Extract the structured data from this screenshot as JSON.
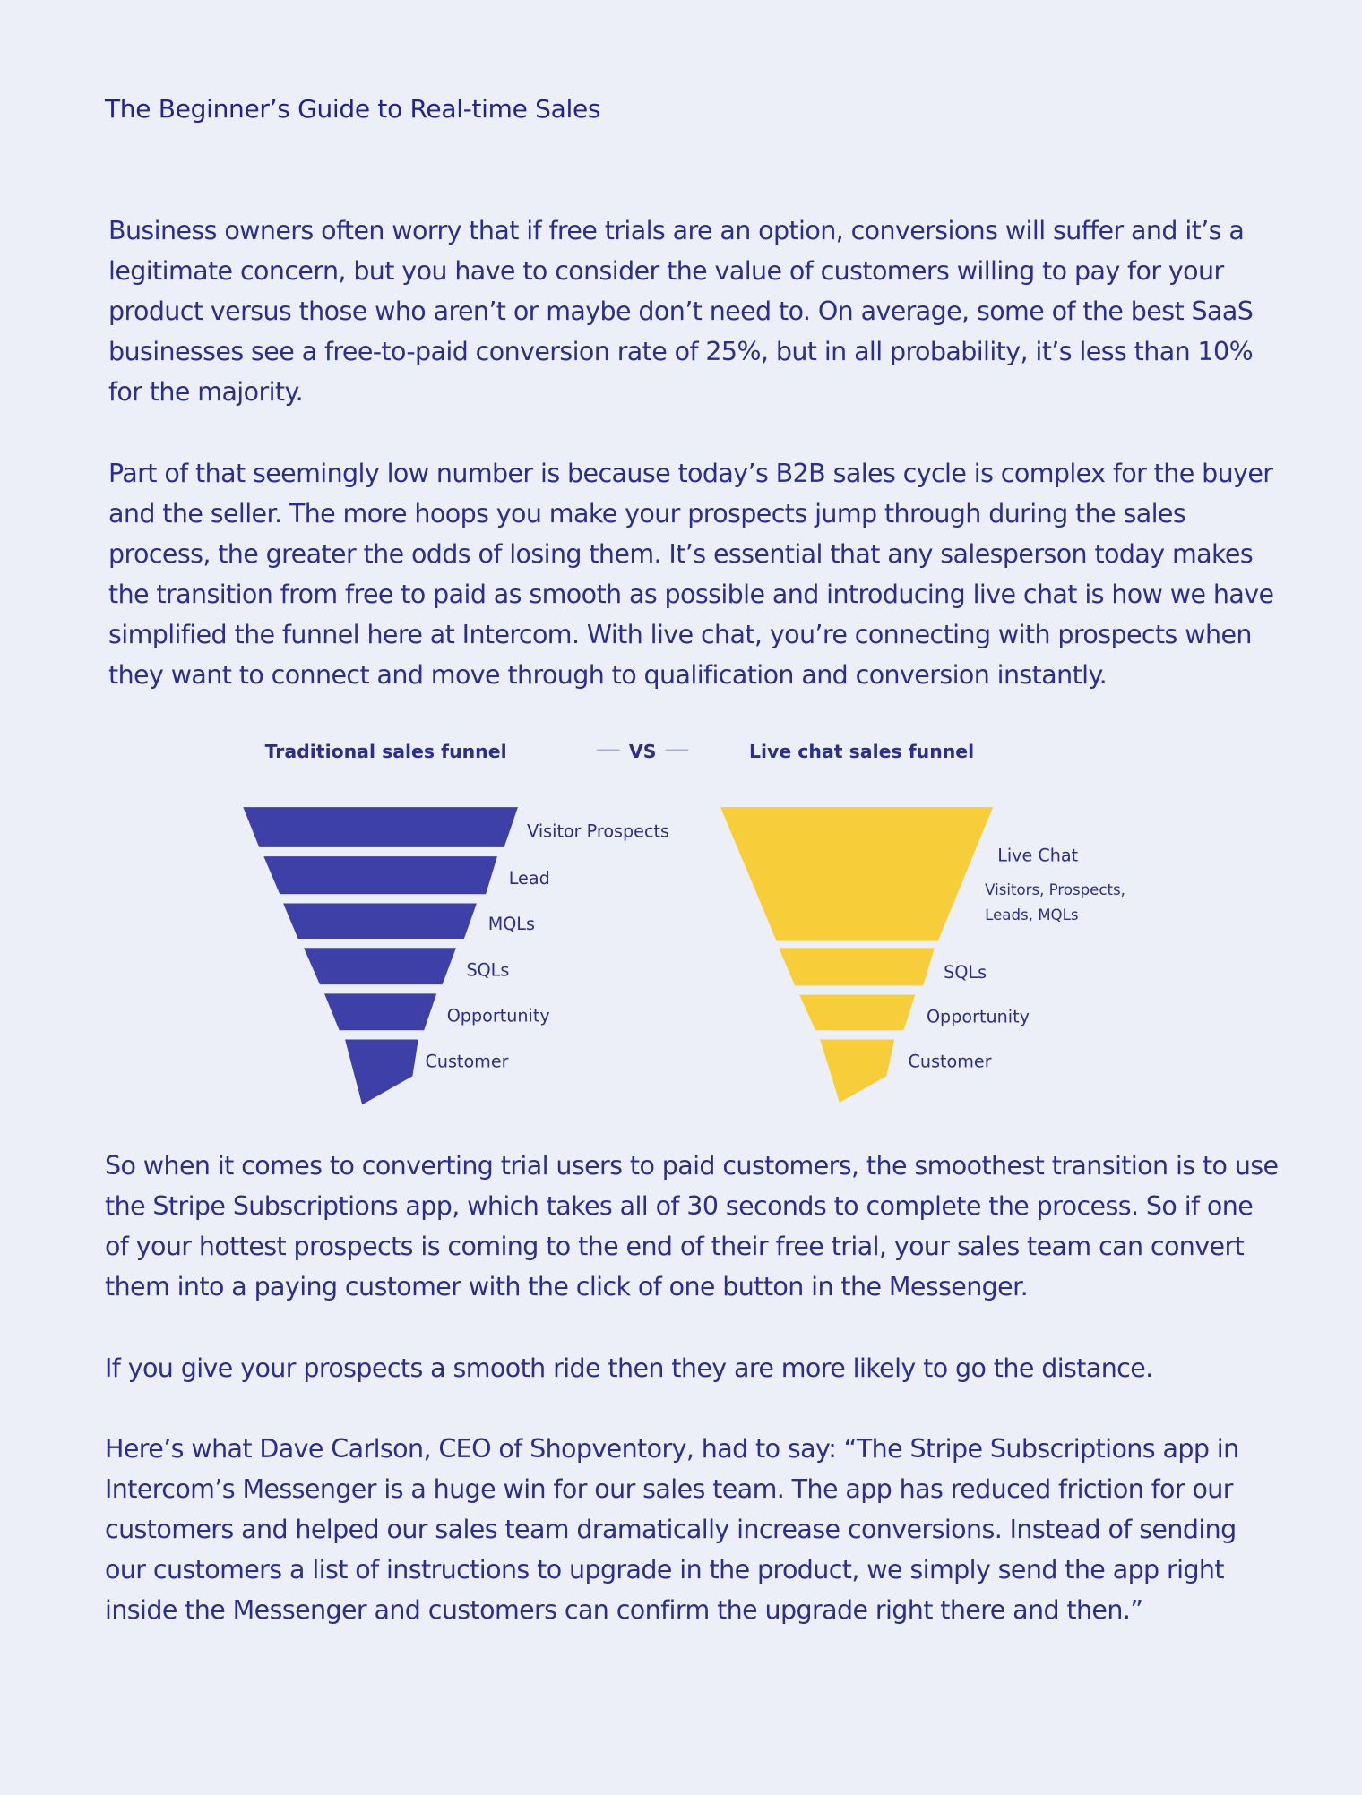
{
  "header": {
    "title": "The Beginner’s Guide to Real-time Sales"
  },
  "paragraphs": [
    "Business owners often worry that if free trials are an option, conversions will suffer and it’s a legitimate concern, but you have to consider the value of customers willing to pay for your product versus those who aren’t or maybe don’t need to. On average, some of the best SaaS businesses see a free-to-paid conversion rate of 25%, but in all probability, it’s less than 10% for the majority.",
    "Part of that seemingly low number is because today’s B2B sales cycle is complex for the buyer and the seller. The more hoops you make your prospects jump through during the sales process, the greater the odds of losing them. It’s essential that any salesperson today makes the transition from free to paid as smooth as possible and introducing live chat is how we have simplified the funnel here at Intercom. With live chat, you’re connecting with prospects when they want to connect and move through to qualification and conversion instantly.",
    "So when it comes to converting trial users to paid customers, the smoothest transition is to use the Stripe Subscriptions app, which takes all of 30 seconds to complete the process. So if one of your hottest prospects is coming to the end of their free trial, your sales team can convert them into a paying customer with the click of one button in the Messenger.",
    "If you give your prospects a smooth ride then they are more likely to go the distance.",
    "Here’s what Dave Carlson, CEO of Shopventory, had to say: “The Stripe Subscriptions app in Intercom’s Messenger is a huge win for our sales team. The app has reduced friction for our customers and helped our sales team dramatically increase conversions. Instead of sending our customers a list of instructions to upgrade in the product, we simply send the app right inside the Messenger and customers can confirm the upgrade right there and then.”"
  ],
  "diagram": {
    "left_title": "Traditional sales funnel",
    "vs": "VS",
    "right_title": "Live chat sales funnel",
    "left_labels": [
      "Visitor Prospects",
      "Lead",
      "MQLs",
      "SQLs",
      "Opportunity",
      "Customer"
    ],
    "right_labels": [
      "Live Chat",
      "SQLs",
      "Opportunity",
      "Customer"
    ],
    "right_note_lines": [
      "Visitors, Prospects,",
      "Leads, MQLs"
    ]
  }
}
